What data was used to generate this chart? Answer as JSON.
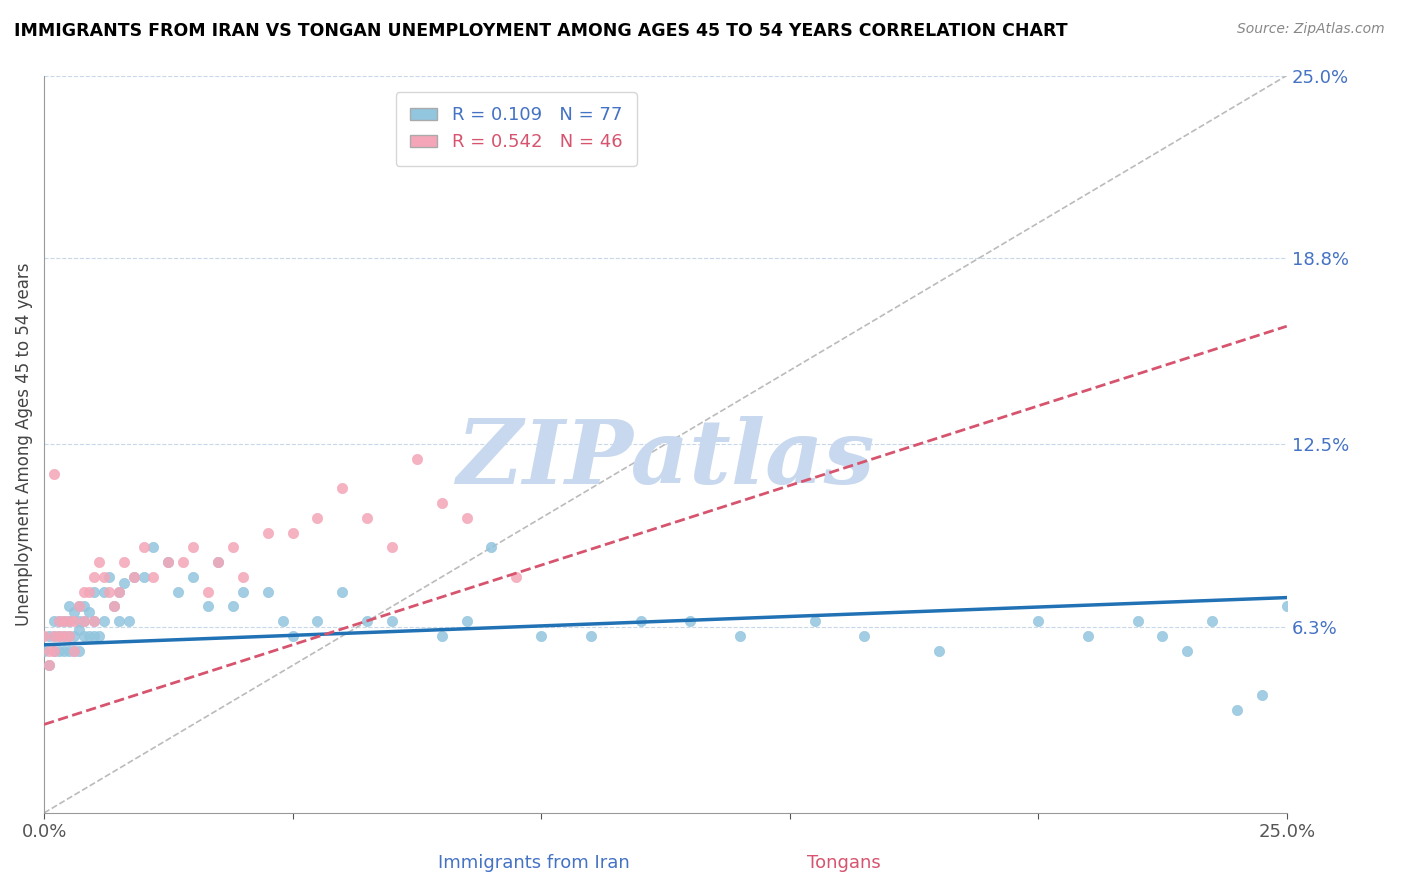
{
  "title": "IMMIGRANTS FROM IRAN VS TONGAN UNEMPLOYMENT AMONG AGES 45 TO 54 YEARS CORRELATION CHART",
  "source_text": "Source: ZipAtlas.com",
  "ylabel": "Unemployment Among Ages 45 to 54 years",
  "xlabel_iran": "Immigrants from Iran",
  "xlabel_tongan": "Tongans",
  "xlim": [
    0.0,
    0.25
  ],
  "ylim": [
    0.0,
    0.25
  ],
  "iran_R": 0.109,
  "iran_N": 77,
  "tongan_R": 0.542,
  "tongan_N": 46,
  "iran_color": "#92c5de",
  "tongan_color": "#f4a6b8",
  "iran_trend_color": "#2171b5",
  "tongan_trend_color": "#d6546e",
  "watermark": "ZIPatlas",
  "watermark_color": "#c8d8ee",
  "iran_x": [
    0.0,
    0.001,
    0.001,
    0.002,
    0.002,
    0.002,
    0.003,
    0.003,
    0.003,
    0.004,
    0.004,
    0.004,
    0.005,
    0.005,
    0.005,
    0.005,
    0.006,
    0.006,
    0.006,
    0.007,
    0.007,
    0.007,
    0.007,
    0.008,
    0.008,
    0.008,
    0.009,
    0.009,
    0.01,
    0.01,
    0.01,
    0.011,
    0.012,
    0.012,
    0.013,
    0.014,
    0.015,
    0.015,
    0.016,
    0.017,
    0.018,
    0.02,
    0.022,
    0.025,
    0.027,
    0.03,
    0.033,
    0.035,
    0.038,
    0.04,
    0.045,
    0.048,
    0.05,
    0.055,
    0.06,
    0.065,
    0.07,
    0.08,
    0.085,
    0.09,
    0.1,
    0.11,
    0.12,
    0.13,
    0.14,
    0.155,
    0.165,
    0.18,
    0.2,
    0.21,
    0.22,
    0.225,
    0.23,
    0.235,
    0.24,
    0.245,
    0.25
  ],
  "iran_y": [
    0.055,
    0.06,
    0.05,
    0.065,
    0.055,
    0.06,
    0.06,
    0.055,
    0.065,
    0.065,
    0.06,
    0.055,
    0.07,
    0.06,
    0.055,
    0.065,
    0.068,
    0.06,
    0.055,
    0.07,
    0.065,
    0.062,
    0.055,
    0.07,
    0.065,
    0.06,
    0.068,
    0.06,
    0.075,
    0.065,
    0.06,
    0.06,
    0.075,
    0.065,
    0.08,
    0.07,
    0.075,
    0.065,
    0.078,
    0.065,
    0.08,
    0.08,
    0.09,
    0.085,
    0.075,
    0.08,
    0.07,
    0.085,
    0.07,
    0.075,
    0.075,
    0.065,
    0.06,
    0.065,
    0.075,
    0.065,
    0.065,
    0.06,
    0.065,
    0.09,
    0.06,
    0.06,
    0.065,
    0.065,
    0.06,
    0.065,
    0.06,
    0.055,
    0.065,
    0.06,
    0.065,
    0.06,
    0.055,
    0.065,
    0.035,
    0.04,
    0.07
  ],
  "tongan_x": [
    0.0,
    0.001,
    0.001,
    0.002,
    0.002,
    0.002,
    0.003,
    0.003,
    0.004,
    0.004,
    0.005,
    0.005,
    0.006,
    0.006,
    0.007,
    0.008,
    0.008,
    0.009,
    0.01,
    0.01,
    0.011,
    0.012,
    0.013,
    0.014,
    0.015,
    0.016,
    0.018,
    0.02,
    0.022,
    0.025,
    0.028,
    0.03,
    0.033,
    0.035,
    0.038,
    0.04,
    0.045,
    0.05,
    0.055,
    0.06,
    0.065,
    0.07,
    0.075,
    0.08,
    0.085,
    0.095
  ],
  "tongan_y": [
    0.06,
    0.05,
    0.055,
    0.06,
    0.055,
    0.115,
    0.06,
    0.065,
    0.065,
    0.06,
    0.06,
    0.065,
    0.065,
    0.055,
    0.07,
    0.075,
    0.065,
    0.075,
    0.065,
    0.08,
    0.085,
    0.08,
    0.075,
    0.07,
    0.075,
    0.085,
    0.08,
    0.09,
    0.08,
    0.085,
    0.085,
    0.09,
    0.075,
    0.085,
    0.09,
    0.08,
    0.095,
    0.095,
    0.1,
    0.11,
    0.1,
    0.09,
    0.12,
    0.105,
    0.1,
    0.08
  ],
  "ytick_vals": [
    0.063,
    0.125,
    0.188,
    0.25
  ],
  "ytick_labels": [
    "6.3%",
    "12.5%",
    "18.8%",
    "25.0%"
  ],
  "xtick_vals": [
    0.0,
    0.05,
    0.1,
    0.15,
    0.2,
    0.25
  ],
  "xtick_labels": [
    "0.0%",
    "",
    "",
    "",
    "",
    "25.0%"
  ]
}
